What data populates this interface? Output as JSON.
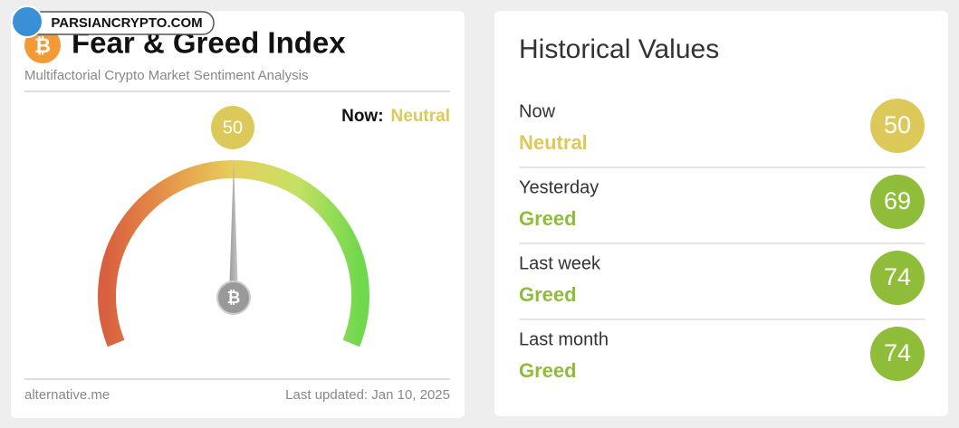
{
  "watermark": "PARSIANCRYPTO.COM",
  "gauge_card": {
    "title": "Fear & Greed Index",
    "subtitle": "Multifactorial Crypto Market Sentiment Analysis",
    "now_label": "Now:",
    "now_status": "Neutral",
    "status_color": "#ddc95a",
    "value": 50,
    "range": [
      0,
      100
    ],
    "source": "alternative.me",
    "last_updated": "Last updated: Jan 10, 2025"
  },
  "history_card": {
    "title": "Historical Values",
    "rows": [
      {
        "period": "Now",
        "status": "Neutral",
        "value": 50,
        "color": "#ddc95a"
      },
      {
        "period": "Yesterday",
        "status": "Greed",
        "value": 69,
        "color": "#8fbd3a"
      },
      {
        "period": "Last week",
        "status": "Greed",
        "value": 74,
        "color": "#8fbd3a"
      },
      {
        "period": "Last month",
        "status": "Greed",
        "value": 74,
        "color": "#8fbd3a"
      }
    ]
  }
}
